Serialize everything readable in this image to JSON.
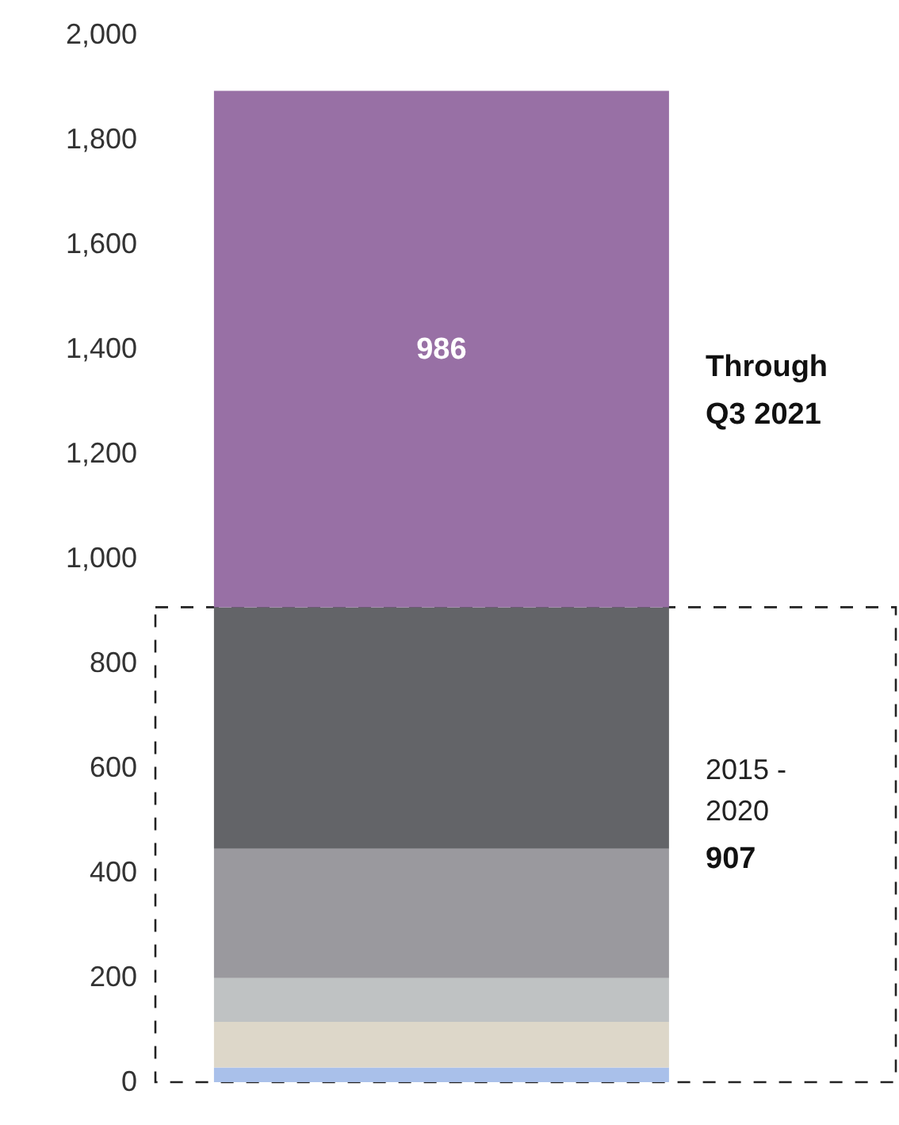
{
  "chart_data": {
    "type": "bar",
    "stacked": true,
    "categories": [
      null
    ],
    "series": [
      {
        "color": "#a9c0ea",
        "values": [
          28
        ]
      },
      {
        "color": "#ddd7c9",
        "values": [
          87
        ]
      },
      {
        "color": "#bfc2c3",
        "values": [
          84
        ]
      },
      {
        "color": "#9a999e",
        "values": [
          247
        ]
      },
      {
        "color": "#636468",
        "values": [
          461
        ]
      },
      {
        "color": "#9870a5",
        "values": [
          986
        ],
        "value_labels": [
          "986"
        ]
      }
    ],
    "ylim": [
      0,
      2000
    ],
    "yticks": [
      0,
      200,
      400,
      600,
      800,
      {
        "value": 1000,
        "label": "1,000"
      },
      {
        "value": 1200,
        "label": "1,200"
      },
      {
        "value": 1400,
        "label": "1,400"
      },
      {
        "value": 1600,
        "label": "1,600"
      },
      {
        "value": 1800,
        "label": "1,800"
      },
      {
        "value": 2000,
        "label": "2,000"
      }
    ],
    "bands": [
      {
        "axis": "y",
        "from": 0,
        "to": 907,
        "label": "2015 - 2020"
      }
    ],
    "annotations": [
      "Through Q3 2021",
      "907"
    ],
    "grid": false,
    "legend": false
  }
}
